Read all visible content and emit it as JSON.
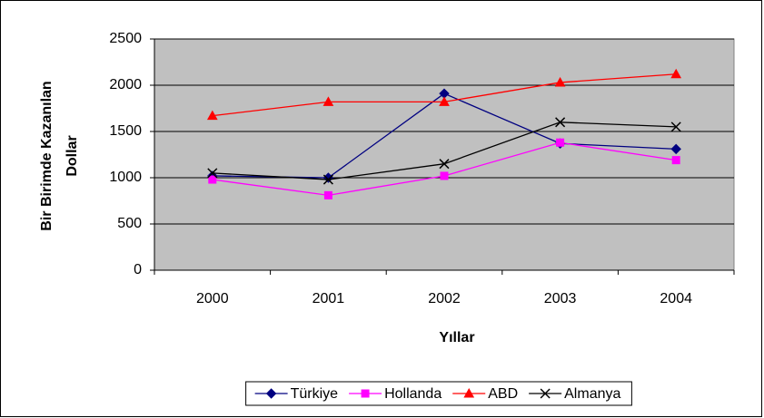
{
  "chart_data": {
    "type": "line",
    "ylabel": [
      "Bir Birimde Kazanılan",
      "Dollar"
    ],
    "xlabel": "Yıllar",
    "categories": [
      "2000",
      "2001",
      "2002",
      "2003",
      "2004"
    ],
    "series": [
      {
        "name": "Türkiye",
        "color": "#000080",
        "marker": "diamond",
        "values": [
          1020,
          1000,
          1910,
          1370,
          1310
        ]
      },
      {
        "name": "Hollanda",
        "color": "#ff00ff",
        "marker": "square",
        "values": [
          980,
          810,
          1020,
          1380,
          1190
        ]
      },
      {
        "name": "ABD",
        "color": "#ff0000",
        "marker": "triangle",
        "values": [
          1670,
          1820,
          1820,
          2030,
          2120
        ]
      },
      {
        "name": "Almanya",
        "color": "#000000",
        "marker": "x",
        "values": [
          1050,
          980,
          1150,
          1600,
          1550
        ]
      }
    ],
    "ylim": [
      0,
      2500
    ],
    "yticks": [
      0,
      500,
      1000,
      1500,
      2000,
      2500
    ],
    "grid": true,
    "legend": "bottom"
  }
}
